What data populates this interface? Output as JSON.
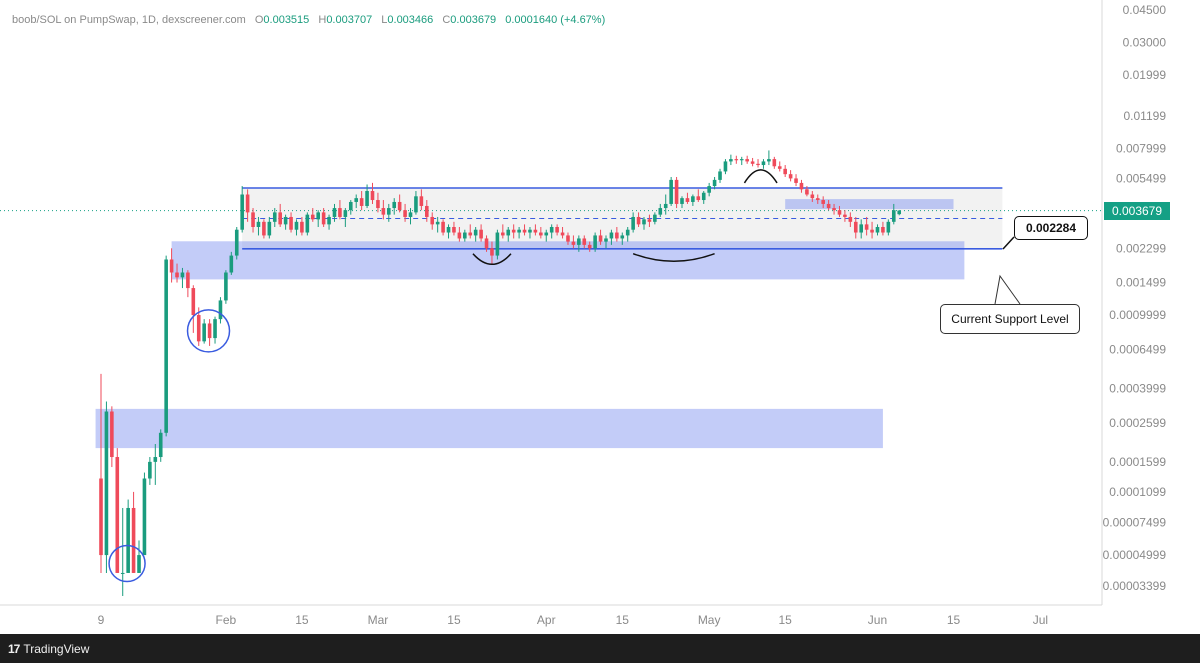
{
  "header": {
    "symbol": "boob/SOL on PumpSwap, 1D, dexscreener.com",
    "open_label": "O",
    "open": "0.003515",
    "high_label": "H",
    "high": "0.003707",
    "low_label": "L",
    "low": "0.003466",
    "close_label": "C",
    "close": "0.003679",
    "change": "0.0001640 (+4.67%)"
  },
  "price_tag": "0.003679",
  "annotations": {
    "price_callout": "0.002284",
    "support_callout": "Current Support Level"
  },
  "footer": {
    "logo": "17",
    "brand": "TradingView"
  },
  "colors": {
    "up": "#1a9c7e",
    "down": "#ef4a5a",
    "zone": "#7b8ff0",
    "line": "#3a5ce0"
  },
  "chart_data": {
    "type": "candlestick",
    "y_scale": "log",
    "y_ticks": [
      "0.04500",
      "0.03000",
      "0.01999",
      "0.01199",
      "0.007999",
      "0.005499",
      "0.003679",
      "0.002299",
      "0.001499",
      "0.0009999",
      "0.0006499",
      "0.0003999",
      "0.0002599",
      "0.0001599",
      "0.0001099",
      "0.00007499",
      "0.00004999",
      "0.00003399"
    ],
    "y_tick_values": [
      0.045,
      0.03,
      0.01999,
      0.01199,
      0.007999,
      0.005499,
      0.003679,
      0.002299,
      0.001499,
      0.0009999,
      0.0006499,
      0.0003999,
      0.0002599,
      0.0001599,
      0.0001099,
      7.499e-05,
      4.999e-05,
      3.399e-05
    ],
    "x_ticks": [
      "9",
      "Feb",
      "15",
      "Mar",
      "15",
      "Apr",
      "15",
      "May",
      "15",
      "Jun",
      "15",
      "Jul"
    ],
    "x_tick_days": [
      0,
      23,
      37,
      51,
      65,
      82,
      96,
      112,
      126,
      143,
      157,
      173
    ],
    "last_price": 0.003679,
    "support_level": 0.002284,
    "range_top": 0.00488,
    "range_mid": 0.003336,
    "zones": [
      {
        "d0": 13,
        "d1": 159,
        "top": 0.00251,
        "bottom": 0.00156
      },
      {
        "d0": -1,
        "d1": 144,
        "top": 0.00031,
        "bottom": 0.00019
      },
      {
        "d0": 126,
        "d1": 157,
        "top": 0.00425,
        "bottom": 0.00375
      }
    ],
    "candles": [
      [
        0,
        0.00013,
        0.00048,
        4e-05,
        5e-05
      ],
      [
        1,
        5e-05,
        0.00034,
        4e-05,
        0.0003
      ],
      [
        2,
        0.0003,
        0.00032,
        0.00015,
        0.00017
      ],
      [
        3,
        0.00017,
        0.00019,
        4e-05,
        4e-05
      ],
      [
        4,
        4e-05,
        9e-05,
        3e-05,
        4e-05
      ],
      [
        5,
        4e-05,
        0.0001,
        4e-05,
        9e-05
      ],
      [
        6,
        9e-05,
        0.00011,
        4e-05,
        4e-05
      ],
      [
        7,
        4e-05,
        6e-05,
        4e-05,
        5e-05
      ],
      [
        8,
        5e-05,
        0.00014,
        5e-05,
        0.00013
      ],
      [
        9,
        0.00013,
        0.00017,
        0.00012,
        0.00016
      ],
      [
        10,
        0.00016,
        0.0002,
        0.00012,
        0.00017
      ],
      [
        11,
        0.00017,
        0.00024,
        0.00016,
        0.00023
      ],
      [
        12,
        0.00023,
        0.0021,
        0.00022,
        0.002
      ],
      [
        13,
        0.002,
        0.0023,
        0.0015,
        0.0017
      ],
      [
        14,
        0.0017,
        0.0019,
        0.0015,
        0.0016
      ],
      [
        15,
        0.0016,
        0.0018,
        0.0014,
        0.0017
      ],
      [
        16,
        0.0017,
        0.00175,
        0.00125,
        0.0014
      ],
      [
        17,
        0.0014,
        0.00145,
        0.0008,
        0.001
      ],
      [
        18,
        0.001,
        0.0011,
        0.00068,
        0.00072
      ],
      [
        19,
        0.00072,
        0.00095,
        0.0007,
        0.0009
      ],
      [
        20,
        0.0009,
        0.00095,
        0.00068,
        0.00075
      ],
      [
        21,
        0.00075,
        0.00098,
        0.0007,
        0.00095
      ],
      [
        22,
        0.00095,
        0.00125,
        0.0009,
        0.0012
      ],
      [
        23,
        0.0012,
        0.00175,
        0.00115,
        0.0017
      ],
      [
        24,
        0.0017,
        0.0022,
        0.00165,
        0.0021
      ],
      [
        25,
        0.0021,
        0.003,
        0.002,
        0.0029
      ],
      [
        26,
        0.0029,
        0.005,
        0.0028,
        0.0045
      ],
      [
        27,
        0.0045,
        0.0048,
        0.0032,
        0.0036
      ],
      [
        28,
        0.0036,
        0.0038,
        0.0028,
        0.003
      ],
      [
        29,
        0.003,
        0.0034,
        0.0027,
        0.0032
      ],
      [
        30,
        0.0032,
        0.0033,
        0.0026,
        0.0027
      ],
      [
        31,
        0.0027,
        0.0034,
        0.0026,
        0.0032
      ],
      [
        32,
        0.0032,
        0.0038,
        0.003,
        0.0036
      ],
      [
        33,
        0.0036,
        0.004,
        0.003,
        0.0031
      ],
      [
        34,
        0.0031,
        0.0035,
        0.0029,
        0.0034
      ],
      [
        35,
        0.0034,
        0.0036,
        0.0028,
        0.0029
      ],
      [
        36,
        0.0029,
        0.0033,
        0.0027,
        0.0032
      ],
      [
        37,
        0.0032,
        0.0034,
        0.0027,
        0.0028
      ],
      [
        38,
        0.0028,
        0.0036,
        0.0027,
        0.0035
      ],
      [
        39,
        0.0035,
        0.0038,
        0.0032,
        0.0033
      ],
      [
        40,
        0.0033,
        0.0037,
        0.003,
        0.0036
      ],
      [
        41,
        0.0036,
        0.0038,
        0.003,
        0.0031
      ],
      [
        42,
        0.0031,
        0.0035,
        0.0029,
        0.0034
      ],
      [
        43,
        0.0034,
        0.004,
        0.0032,
        0.0038
      ],
      [
        44,
        0.0038,
        0.0042,
        0.0033,
        0.0034
      ],
      [
        45,
        0.0034,
        0.0038,
        0.003,
        0.0037
      ],
      [
        46,
        0.0037,
        0.0042,
        0.0035,
        0.0041
      ],
      [
        47,
        0.0041,
        0.0045,
        0.0038,
        0.0043
      ],
      [
        48,
        0.0043,
        0.0047,
        0.0037,
        0.0039
      ],
      [
        49,
        0.0039,
        0.0051,
        0.0038,
        0.0047
      ],
      [
        50,
        0.0047,
        0.0052,
        0.004,
        0.0042
      ],
      [
        51,
        0.0042,
        0.0046,
        0.0036,
        0.0038
      ],
      [
        52,
        0.0038,
        0.0042,
        0.0033,
        0.0035
      ],
      [
        53,
        0.0035,
        0.004,
        0.0032,
        0.0038
      ],
      [
        54,
        0.0038,
        0.0043,
        0.0035,
        0.0041
      ],
      [
        55,
        0.0041,
        0.0045,
        0.0036,
        0.0037
      ],
      [
        56,
        0.0037,
        0.004,
        0.0032,
        0.0034
      ],
      [
        57,
        0.0034,
        0.0038,
        0.0031,
        0.0036
      ],
      [
        58,
        0.0036,
        0.0047,
        0.0035,
        0.0044
      ],
      [
        59,
        0.0044,
        0.0048,
        0.0037,
        0.0039
      ],
      [
        60,
        0.0039,
        0.0042,
        0.0032,
        0.0034
      ],
      [
        61,
        0.0034,
        0.0036,
        0.0029,
        0.0031
      ],
      [
        62,
        0.0031,
        0.0034,
        0.0028,
        0.0032
      ],
      [
        63,
        0.0032,
        0.0033,
        0.0027,
        0.0028
      ],
      [
        64,
        0.0028,
        0.0031,
        0.0026,
        0.003
      ],
      [
        65,
        0.003,
        0.0032,
        0.0027,
        0.0028
      ],
      [
        66,
        0.0028,
        0.003,
        0.0025,
        0.0026
      ],
      [
        67,
        0.0026,
        0.0029,
        0.0025,
        0.0028
      ],
      [
        68,
        0.0028,
        0.0031,
        0.0026,
        0.0027
      ],
      [
        69,
        0.0027,
        0.003,
        0.0025,
        0.0029
      ],
      [
        70,
        0.0029,
        0.0031,
        0.0025,
        0.0026
      ],
      [
        71,
        0.0026,
        0.0027,
        0.0022,
        0.0023
      ],
      [
        72,
        0.0023,
        0.0025,
        0.0019,
        0.0021
      ],
      [
        73,
        0.0021,
        0.0029,
        0.002,
        0.0028
      ],
      [
        74,
        0.0028,
        0.0031,
        0.0026,
        0.0027
      ],
      [
        75,
        0.0027,
        0.003,
        0.0025,
        0.0029
      ],
      [
        76,
        0.0029,
        0.0031,
        0.0026,
        0.0028
      ],
      [
        77,
        0.0028,
        0.003,
        0.0026,
        0.0029
      ],
      [
        78,
        0.0029,
        0.0031,
        0.0027,
        0.0028
      ],
      [
        79,
        0.0028,
        0.003,
        0.0026,
        0.0029
      ],
      [
        80,
        0.0029,
        0.0031,
        0.0027,
        0.0028
      ],
      [
        81,
        0.0028,
        0.003,
        0.0026,
        0.0027
      ],
      [
        82,
        0.0027,
        0.0029,
        0.0025,
        0.0028
      ],
      [
        83,
        0.0028,
        0.0031,
        0.0026,
        0.003
      ],
      [
        84,
        0.003,
        0.0031,
        0.0027,
        0.0028
      ],
      [
        85,
        0.0028,
        0.003,
        0.0026,
        0.0027
      ],
      [
        86,
        0.0027,
        0.0028,
        0.0024,
        0.0025
      ],
      [
        87,
        0.0025,
        0.0027,
        0.0023,
        0.0024
      ],
      [
        88,
        0.0024,
        0.0027,
        0.0022,
        0.0026
      ],
      [
        89,
        0.0026,
        0.0027,
        0.0023,
        0.0024
      ],
      [
        90,
        0.0024,
        0.0025,
        0.0022,
        0.0023
      ],
      [
        91,
        0.0023,
        0.0028,
        0.0022,
        0.0027
      ],
      [
        92,
        0.0027,
        0.0029,
        0.0024,
        0.0025
      ],
      [
        93,
        0.0025,
        0.0027,
        0.0023,
        0.0026
      ],
      [
        94,
        0.0026,
        0.0029,
        0.0024,
        0.0028
      ],
      [
        95,
        0.0028,
        0.003,
        0.0025,
        0.0026
      ],
      [
        96,
        0.0026,
        0.0028,
        0.0024,
        0.0027
      ],
      [
        97,
        0.0027,
        0.003,
        0.0025,
        0.0029
      ],
      [
        98,
        0.0029,
        0.0036,
        0.0028,
        0.0034
      ],
      [
        99,
        0.0034,
        0.0036,
        0.003,
        0.0031
      ],
      [
        100,
        0.0031,
        0.0034,
        0.0029,
        0.0033
      ],
      [
        101,
        0.0033,
        0.0035,
        0.003,
        0.0032
      ],
      [
        102,
        0.0032,
        0.0036,
        0.0031,
        0.0035
      ],
      [
        103,
        0.0035,
        0.004,
        0.0034,
        0.0038
      ],
      [
        104,
        0.0038,
        0.0045,
        0.0035,
        0.004
      ],
      [
        105,
        0.004,
        0.0056,
        0.0039,
        0.0054
      ],
      [
        106,
        0.0054,
        0.0056,
        0.0038,
        0.004
      ],
      [
        107,
        0.004,
        0.0044,
        0.0038,
        0.0043
      ],
      [
        108,
        0.0043,
        0.0046,
        0.004,
        0.0041
      ],
      [
        109,
        0.0041,
        0.0045,
        0.0039,
        0.0044
      ],
      [
        110,
        0.0044,
        0.0048,
        0.0041,
        0.0042
      ],
      [
        111,
        0.0042,
        0.0047,
        0.004,
        0.0046
      ],
      [
        112,
        0.0046,
        0.0052,
        0.0044,
        0.005
      ],
      [
        113,
        0.005,
        0.0056,
        0.0048,
        0.0054
      ],
      [
        114,
        0.0054,
        0.0062,
        0.0052,
        0.006
      ],
      [
        115,
        0.006,
        0.007,
        0.0058,
        0.0068
      ],
      [
        116,
        0.0068,
        0.0074,
        0.0065,
        0.007
      ],
      [
        117,
        0.007,
        0.0073,
        0.0066,
        0.0069
      ],
      [
        118,
        0.0069,
        0.0072,
        0.0065,
        0.007
      ],
      [
        119,
        0.007,
        0.0073,
        0.0066,
        0.0068
      ],
      [
        120,
        0.0068,
        0.0071,
        0.0064,
        0.0066
      ],
      [
        121,
        0.0066,
        0.007,
        0.0063,
        0.0065
      ],
      [
        122,
        0.0065,
        0.007,
        0.0062,
        0.0068
      ],
      [
        123,
        0.0068,
        0.0078,
        0.0065,
        0.007
      ],
      [
        124,
        0.007,
        0.0072,
        0.0062,
        0.0064
      ],
      [
        125,
        0.0064,
        0.0068,
        0.006,
        0.0062
      ],
      [
        126,
        0.0062,
        0.0065,
        0.0056,
        0.0058
      ],
      [
        127,
        0.0058,
        0.0061,
        0.0053,
        0.0055
      ],
      [
        128,
        0.0055,
        0.0058,
        0.005,
        0.0052
      ],
      [
        129,
        0.0052,
        0.0054,
        0.0046,
        0.0048
      ],
      [
        130,
        0.0048,
        0.005,
        0.0044,
        0.0045
      ],
      [
        131,
        0.0045,
        0.0047,
        0.0041,
        0.0043
      ],
      [
        132,
        0.0043,
        0.0045,
        0.004,
        0.0042
      ],
      [
        133,
        0.0042,
        0.0044,
        0.0038,
        0.004
      ],
      [
        134,
        0.004,
        0.0042,
        0.0037,
        0.0038
      ],
      [
        135,
        0.0038,
        0.004,
        0.0035,
        0.0037
      ],
      [
        136,
        0.0037,
        0.0039,
        0.0034,
        0.0035
      ],
      [
        137,
        0.0035,
        0.0037,
        0.0032,
        0.0034
      ],
      [
        138,
        0.0034,
        0.0036,
        0.003,
        0.0032
      ],
      [
        139,
        0.0032,
        0.0034,
        0.0026,
        0.0028
      ],
      [
        140,
        0.0028,
        0.0033,
        0.0026,
        0.0031
      ],
      [
        141,
        0.0031,
        0.0034,
        0.0027,
        0.0029
      ],
      [
        142,
        0.0029,
        0.0032,
        0.0026,
        0.0028
      ],
      [
        143,
        0.0028,
        0.0031,
        0.0027,
        0.003
      ],
      [
        144,
        0.003,
        0.0032,
        0.0027,
        0.0028
      ],
      [
        145,
        0.0028,
        0.0033,
        0.0027,
        0.0032
      ],
      [
        146,
        0.0032,
        0.004,
        0.0031,
        0.0037
      ],
      [
        147,
        0.00352,
        0.00371,
        0.00347,
        0.00368
      ]
    ]
  }
}
